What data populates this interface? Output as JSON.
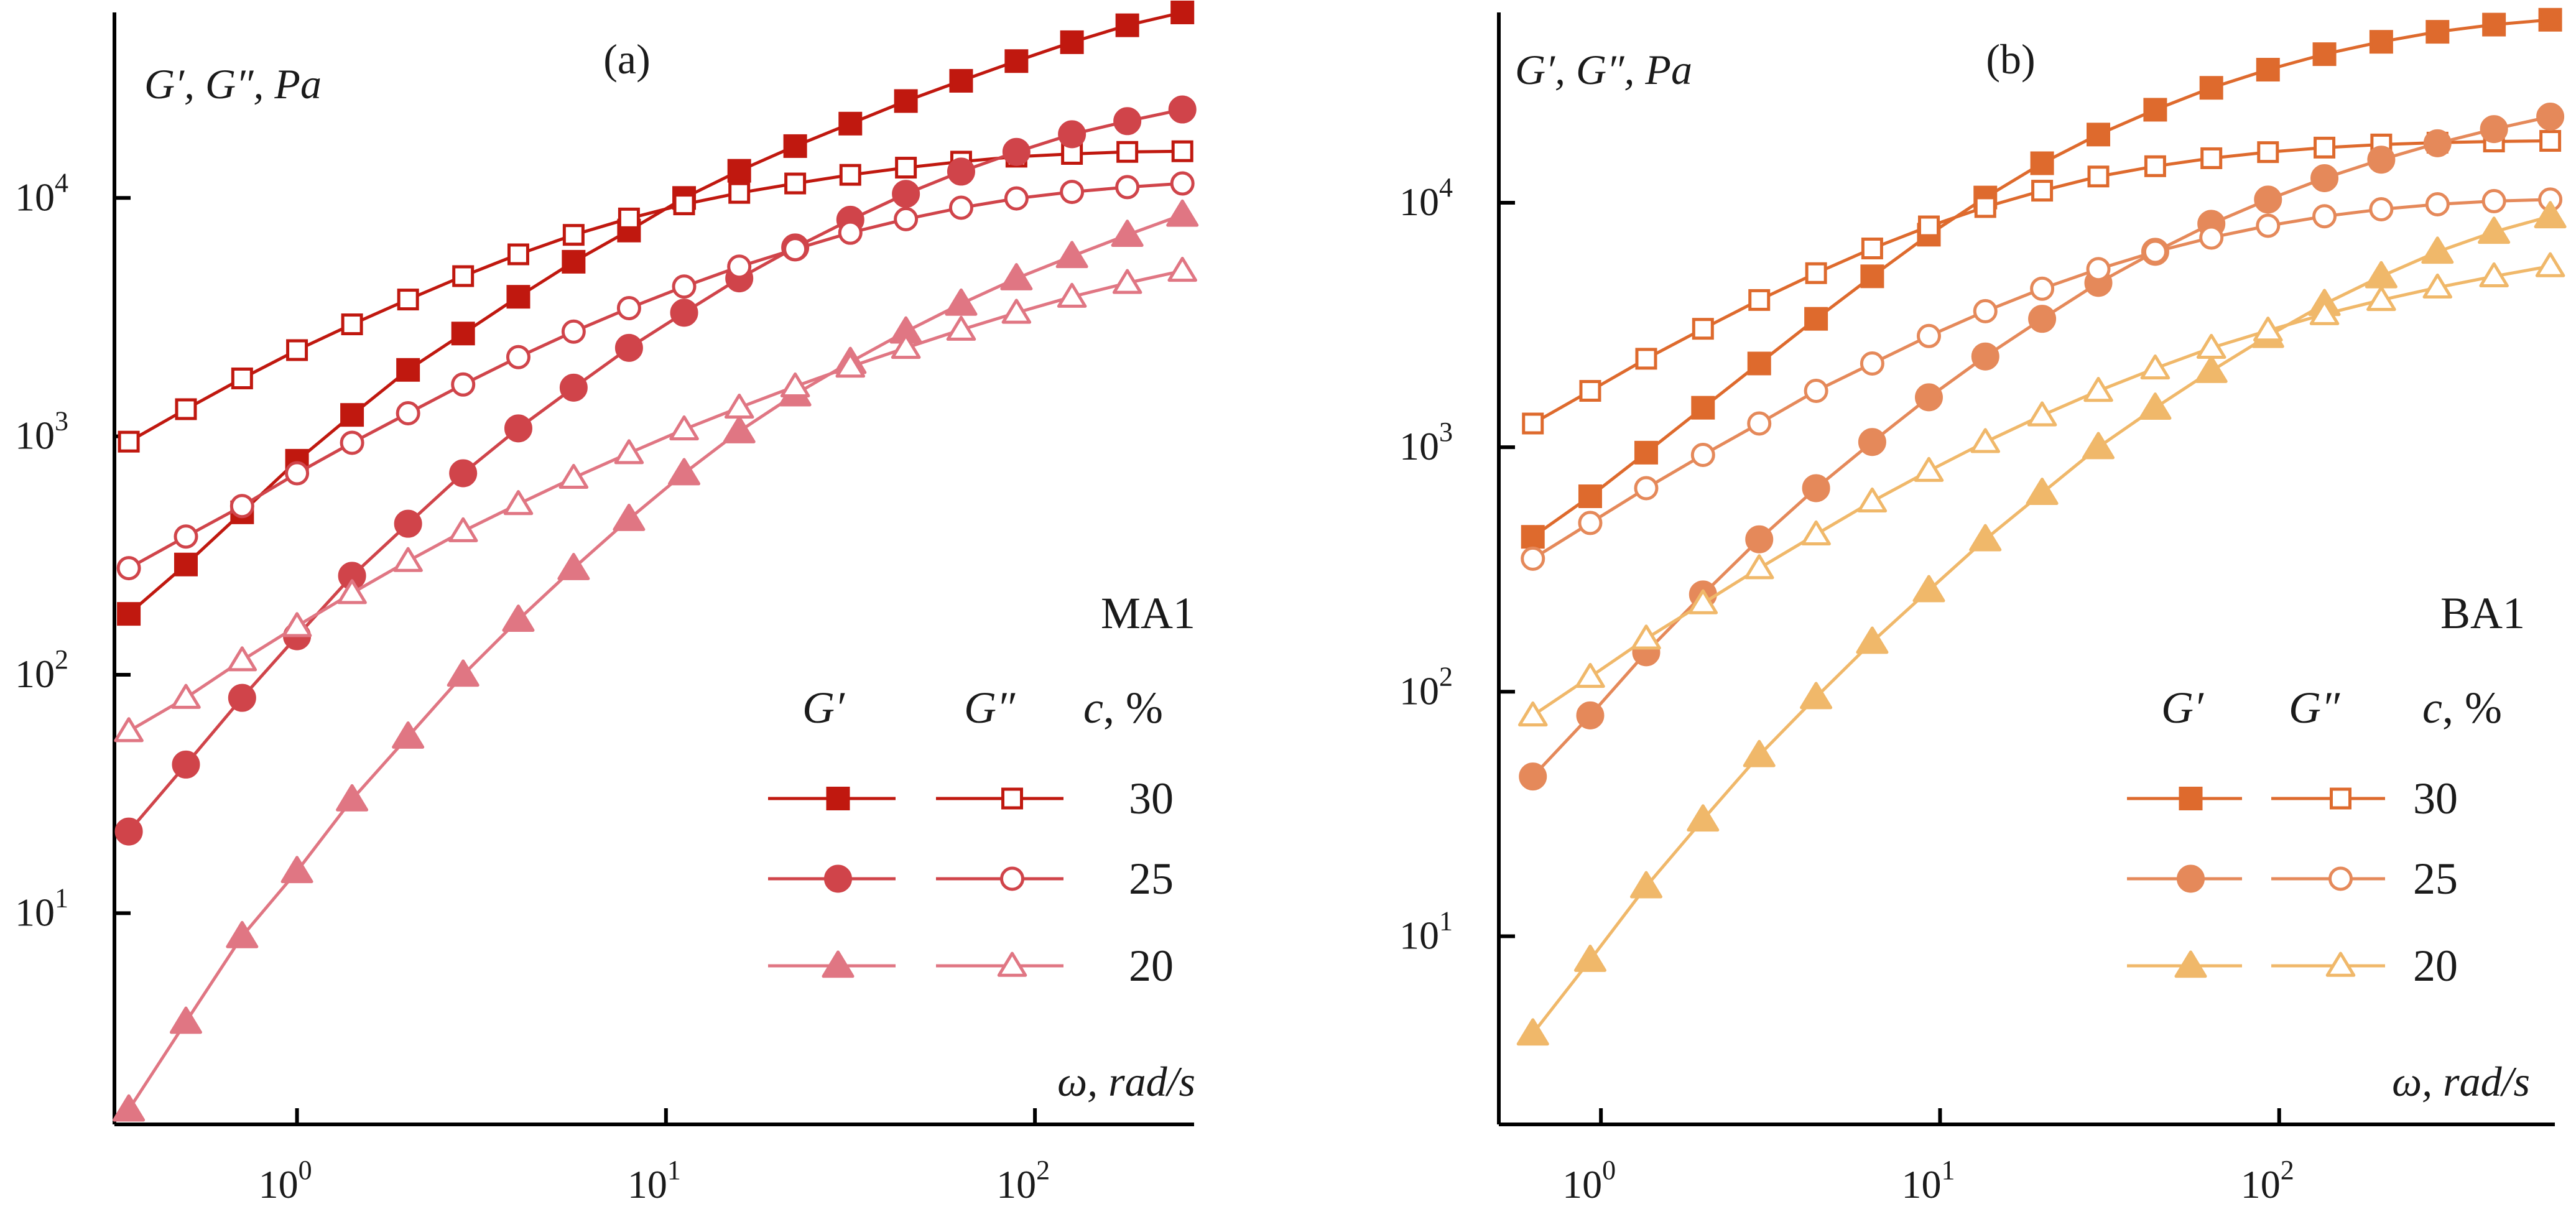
{
  "chart_data": [
    {
      "id": "a",
      "type": "line",
      "panel_label": "(a)",
      "ylabel": "G′, G″, Pa",
      "xlabel": "ω, rad/s",
      "xscale": "log",
      "yscale": "log",
      "xlim": [
        0.32,
        270
      ],
      "ylim": [
        1.3,
        60000
      ],
      "x_ticks": [
        {
          "value": 1,
          "base": "10",
          "exp": "0"
        },
        {
          "value": 10,
          "base": "10",
          "exp": "1"
        },
        {
          "value": 100,
          "base": "10",
          "exp": "2"
        }
      ],
      "y_ticks": [
        {
          "value": 10,
          "base": "10",
          "exp": "1"
        },
        {
          "value": 100,
          "base": "10",
          "exp": "2"
        },
        {
          "value": 1000,
          "base": "10",
          "exp": "3"
        },
        {
          "value": 10000,
          "base": "10",
          "exp": "4"
        }
      ],
      "sample_label": "MA1",
      "legend": {
        "col_gp": "G′",
        "col_gpp": "G″",
        "col_c_var": "c",
        "col_c_unit": ", %",
        "placement": "lower-right"
      },
      "x": [
        0.35,
        0.5,
        0.71,
        1.0,
        1.41,
        2.0,
        2.82,
        3.98,
        5.62,
        7.94,
        11.2,
        15.8,
        22.4,
        31.6,
        44.7,
        63.1,
        89.1,
        126,
        178,
        251
      ],
      "series": [
        {
          "name": "G′",
          "c": "30",
          "marker": "square",
          "filled": true,
          "color": "#c0180f",
          "values": [
            180,
            290,
            480,
            790,
            1230,
            1900,
            2700,
            3850,
            5400,
            7300,
            10000,
            13000,
            16500,
            20500,
            25500,
            31000,
            37500,
            45000,
            53000,
            60000
          ]
        },
        {
          "name": "G″",
          "c": "30",
          "marker": "square",
          "filled": false,
          "color": "#c0180f",
          "values": [
            950,
            1300,
            1750,
            2300,
            2950,
            3750,
            4700,
            5800,
            7000,
            8200,
            9400,
            10500,
            11500,
            12500,
            13400,
            14200,
            14900,
            15300,
            15600,
            15700
          ]
        },
        {
          "name": "G′",
          "c": "25",
          "marker": "circle",
          "filled": true,
          "color": "#d0444a",
          "values": [
            22,
            42,
            80,
            145,
            260,
            430,
            700,
            1080,
            1600,
            2350,
            3300,
            4600,
            6200,
            8100,
            10400,
            12900,
            15600,
            18500,
            21000,
            23500
          ]
        },
        {
          "name": "G″",
          "c": "25",
          "marker": "circle",
          "filled": false,
          "color": "#d0444a",
          "values": [
            280,
            380,
            510,
            700,
            940,
            1250,
            1650,
            2150,
            2750,
            3450,
            4250,
            5150,
            6100,
            7150,
            8150,
            9100,
            9950,
            10600,
            11100,
            11500
          ]
        },
        {
          "name": "G′",
          "c": "20",
          "marker": "triangle",
          "filled": true,
          "color": "#e07683",
          "values": [
            1.5,
            3.5,
            8,
            15,
            30,
            55,
            100,
            170,
            280,
            450,
            700,
            1050,
            1500,
            2050,
            2750,
            3600,
            4600,
            5700,
            7000,
            8500
          ]
        },
        {
          "name": "G″",
          "c": "20",
          "marker": "triangle",
          "filled": false,
          "color": "#e07683",
          "values": [
            58,
            80,
            115,
            160,
            220,
            300,
            400,
            520,
            670,
            850,
            1070,
            1320,
            1620,
            1960,
            2350,
            2800,
            3300,
            3850,
            4400,
            4950
          ]
        }
      ]
    },
    {
      "id": "b",
      "type": "line",
      "panel_label": "(b)",
      "ylabel": "G′, G″, Pa",
      "xlabel": "ω, rad/s",
      "xscale": "log",
      "yscale": "log",
      "xlim": [
        0.5,
        650
      ],
      "ylim": [
        1.7,
        60000
      ],
      "x_ticks": [
        {
          "value": 1,
          "base": "10",
          "exp": "0"
        },
        {
          "value": 10,
          "base": "10",
          "exp": "1"
        },
        {
          "value": 100,
          "base": "10",
          "exp": "2"
        }
      ],
      "y_ticks": [
        {
          "value": 10,
          "base": "10",
          "exp": "1"
        },
        {
          "value": 100,
          "base": "10",
          "exp": "2"
        },
        {
          "value": 1000,
          "base": "10",
          "exp": "3"
        },
        {
          "value": 10000,
          "base": "10",
          "exp": "4"
        }
      ],
      "sample_label": "BA1",
      "legend": {
        "col_gp": "G′",
        "col_gpp": "G″",
        "col_c_var": "c",
        "col_c_unit": ", %",
        "placement": "lower-right"
      },
      "x": [
        0.63,
        0.93,
        1.36,
        2.0,
        2.93,
        4.31,
        6.31,
        9.27,
        13.6,
        20.0,
        29.3,
        43.1,
        63.1,
        92.7,
        136,
        200,
        293,
        430,
        630
      ],
      "series": [
        {
          "name": "G′",
          "c": "30",
          "marker": "square",
          "filled": true,
          "color": "#de6a2d",
          "values": [
            430,
            630,
            950,
            1450,
            2200,
            3350,
            5000,
            7400,
            10500,
            14500,
            19000,
            24000,
            29500,
            35000,
            40500,
            45500,
            50000,
            53500,
            56000
          ]
        },
        {
          "name": "G″",
          "c": "30",
          "marker": "square",
          "filled": false,
          "color": "#de6a2d",
          "values": [
            1250,
            1700,
            2300,
            3050,
            4000,
            5150,
            6500,
            8000,
            9600,
            11200,
            12800,
            14100,
            15200,
            16100,
            16800,
            17300,
            17600,
            17800,
            17900
          ]
        },
        {
          "name": "G′",
          "c": "25",
          "marker": "circle",
          "filled": true,
          "color": "#e5895a",
          "values": [
            45,
            80,
            145,
            250,
            420,
            680,
            1050,
            1600,
            2350,
            3350,
            4700,
            6300,
            8200,
            10300,
            12600,
            15000,
            17500,
            20000,
            22500
          ]
        },
        {
          "name": "G″",
          "c": "25",
          "marker": "circle",
          "filled": false,
          "color": "#e5895a",
          "values": [
            350,
            490,
            680,
            930,
            1250,
            1700,
            2200,
            2850,
            3600,
            4450,
            5350,
            6300,
            7200,
            8050,
            8800,
            9400,
            9850,
            10150,
            10300
          ]
        },
        {
          "name": "G′",
          "c": "20",
          "marker": "triangle",
          "filled": true,
          "color": "#f0b86a",
          "values": [
            4,
            8,
            16,
            30,
            55,
            95,
            160,
            260,
            420,
            650,
            1000,
            1450,
            2050,
            2850,
            3850,
            5000,
            6300,
            7600,
            8800
          ]
        },
        {
          "name": "G″",
          "c": "20",
          "marker": "triangle",
          "filled": false,
          "color": "#f0b86a",
          "values": [
            80,
            115,
            165,
            230,
            320,
            440,
            600,
            800,
            1050,
            1350,
            1700,
            2100,
            2550,
            3000,
            3500,
            4000,
            4500,
            5000,
            5500
          ]
        }
      ]
    }
  ]
}
